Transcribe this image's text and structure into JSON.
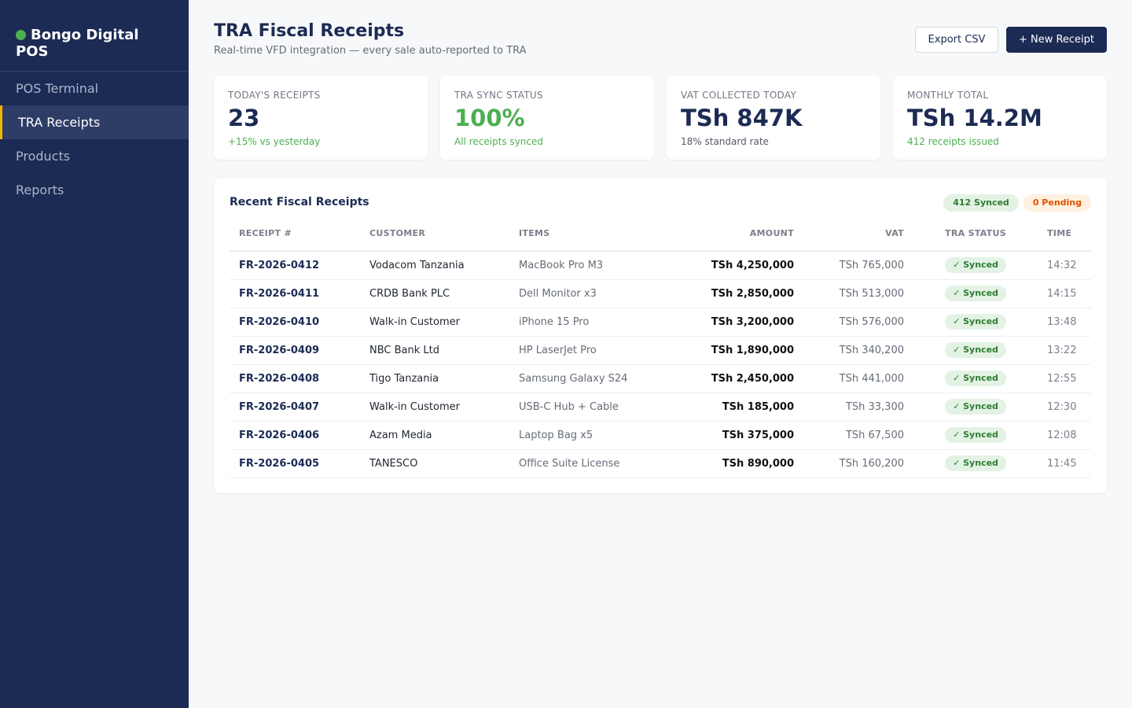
{
  "sidebar": {
    "brand": "Bongo Digital POS",
    "items": [
      {
        "label": "POS Terminal"
      },
      {
        "label": "TRA Receipts"
      },
      {
        "label": "Products"
      },
      {
        "label": "Reports"
      }
    ],
    "active_index": 1
  },
  "header": {
    "title": "TRA Fiscal Receipts",
    "subtitle": "Real-time VFD integration — every sale auto-reported to TRA",
    "export_label": "Export CSV",
    "new_label": "+ New Receipt"
  },
  "cards": [
    {
      "label": "TODAY'S RECEIPTS",
      "value": "23",
      "note": "+15% vs yesterday"
    },
    {
      "label": "TRA SYNC STATUS",
      "value": "100%",
      "note": "All receipts synced"
    },
    {
      "label": "VAT COLLECTED TODAY",
      "value": "TSh 847K",
      "note": "18% standard rate"
    },
    {
      "label": "MONTHLY TOTAL",
      "value": "TSh 14.2M",
      "note": "412 receipts issued"
    }
  ],
  "panel": {
    "title": "Recent Fiscal Receipts",
    "synced_pill": "412 Synced",
    "pending_pill": "0 Pending"
  },
  "table": {
    "columns": [
      "RECEIPT #",
      "CUSTOMER",
      "ITEMS",
      "AMOUNT",
      "VAT",
      "TRA STATUS",
      "TIME"
    ],
    "rows": [
      {
        "id": "FR-2026-0412",
        "customer": "Vodacom Tanzania",
        "items": "MacBook Pro M3",
        "amount": "TSh 4,250,000",
        "vat": "TSh 765,000",
        "status": "✓ Synced",
        "time": "14:32"
      },
      {
        "id": "FR-2026-0411",
        "customer": "CRDB Bank PLC",
        "items": "Dell Monitor x3",
        "amount": "TSh 2,850,000",
        "vat": "TSh 513,000",
        "status": "✓ Synced",
        "time": "14:15"
      },
      {
        "id": "FR-2026-0410",
        "customer": "Walk-in Customer",
        "items": "iPhone 15 Pro",
        "amount": "TSh 3,200,000",
        "vat": "TSh 576,000",
        "status": "✓ Synced",
        "time": "13:48"
      },
      {
        "id": "FR-2026-0409",
        "customer": "NBC Bank Ltd",
        "items": "HP LaserJet Pro",
        "amount": "TSh 1,890,000",
        "vat": "TSh 340,200",
        "status": "✓ Synced",
        "time": "13:22"
      },
      {
        "id": "FR-2026-0408",
        "customer": "Tigo Tanzania",
        "items": "Samsung Galaxy S24",
        "amount": "TSh 2,450,000",
        "vat": "TSh 441,000",
        "status": "✓ Synced",
        "time": "12:55"
      },
      {
        "id": "FR-2026-0407",
        "customer": "Walk-in Customer",
        "items": "USB-C Hub + Cable",
        "amount": "TSh 185,000",
        "vat": "TSh 33,300",
        "status": "✓ Synced",
        "time": "12:30"
      },
      {
        "id": "FR-2026-0406",
        "customer": "Azam Media",
        "items": "Laptop Bag x5",
        "amount": "TSh 375,000",
        "vat": "TSh 67,500",
        "status": "✓ Synced",
        "time": "12:08"
      },
      {
        "id": "FR-2026-0405",
        "customer": "TANESCO",
        "items": "Office Suite License",
        "amount": "TSh 890,000",
        "vat": "TSh 160,200",
        "status": "✓ Synced",
        "time": "11:45"
      }
    ]
  },
  "colors": {
    "navy": "#1c2b54",
    "accent_yellow": "#f5b301",
    "success_green": "#4caf50",
    "pending_orange": "#e65100"
  }
}
